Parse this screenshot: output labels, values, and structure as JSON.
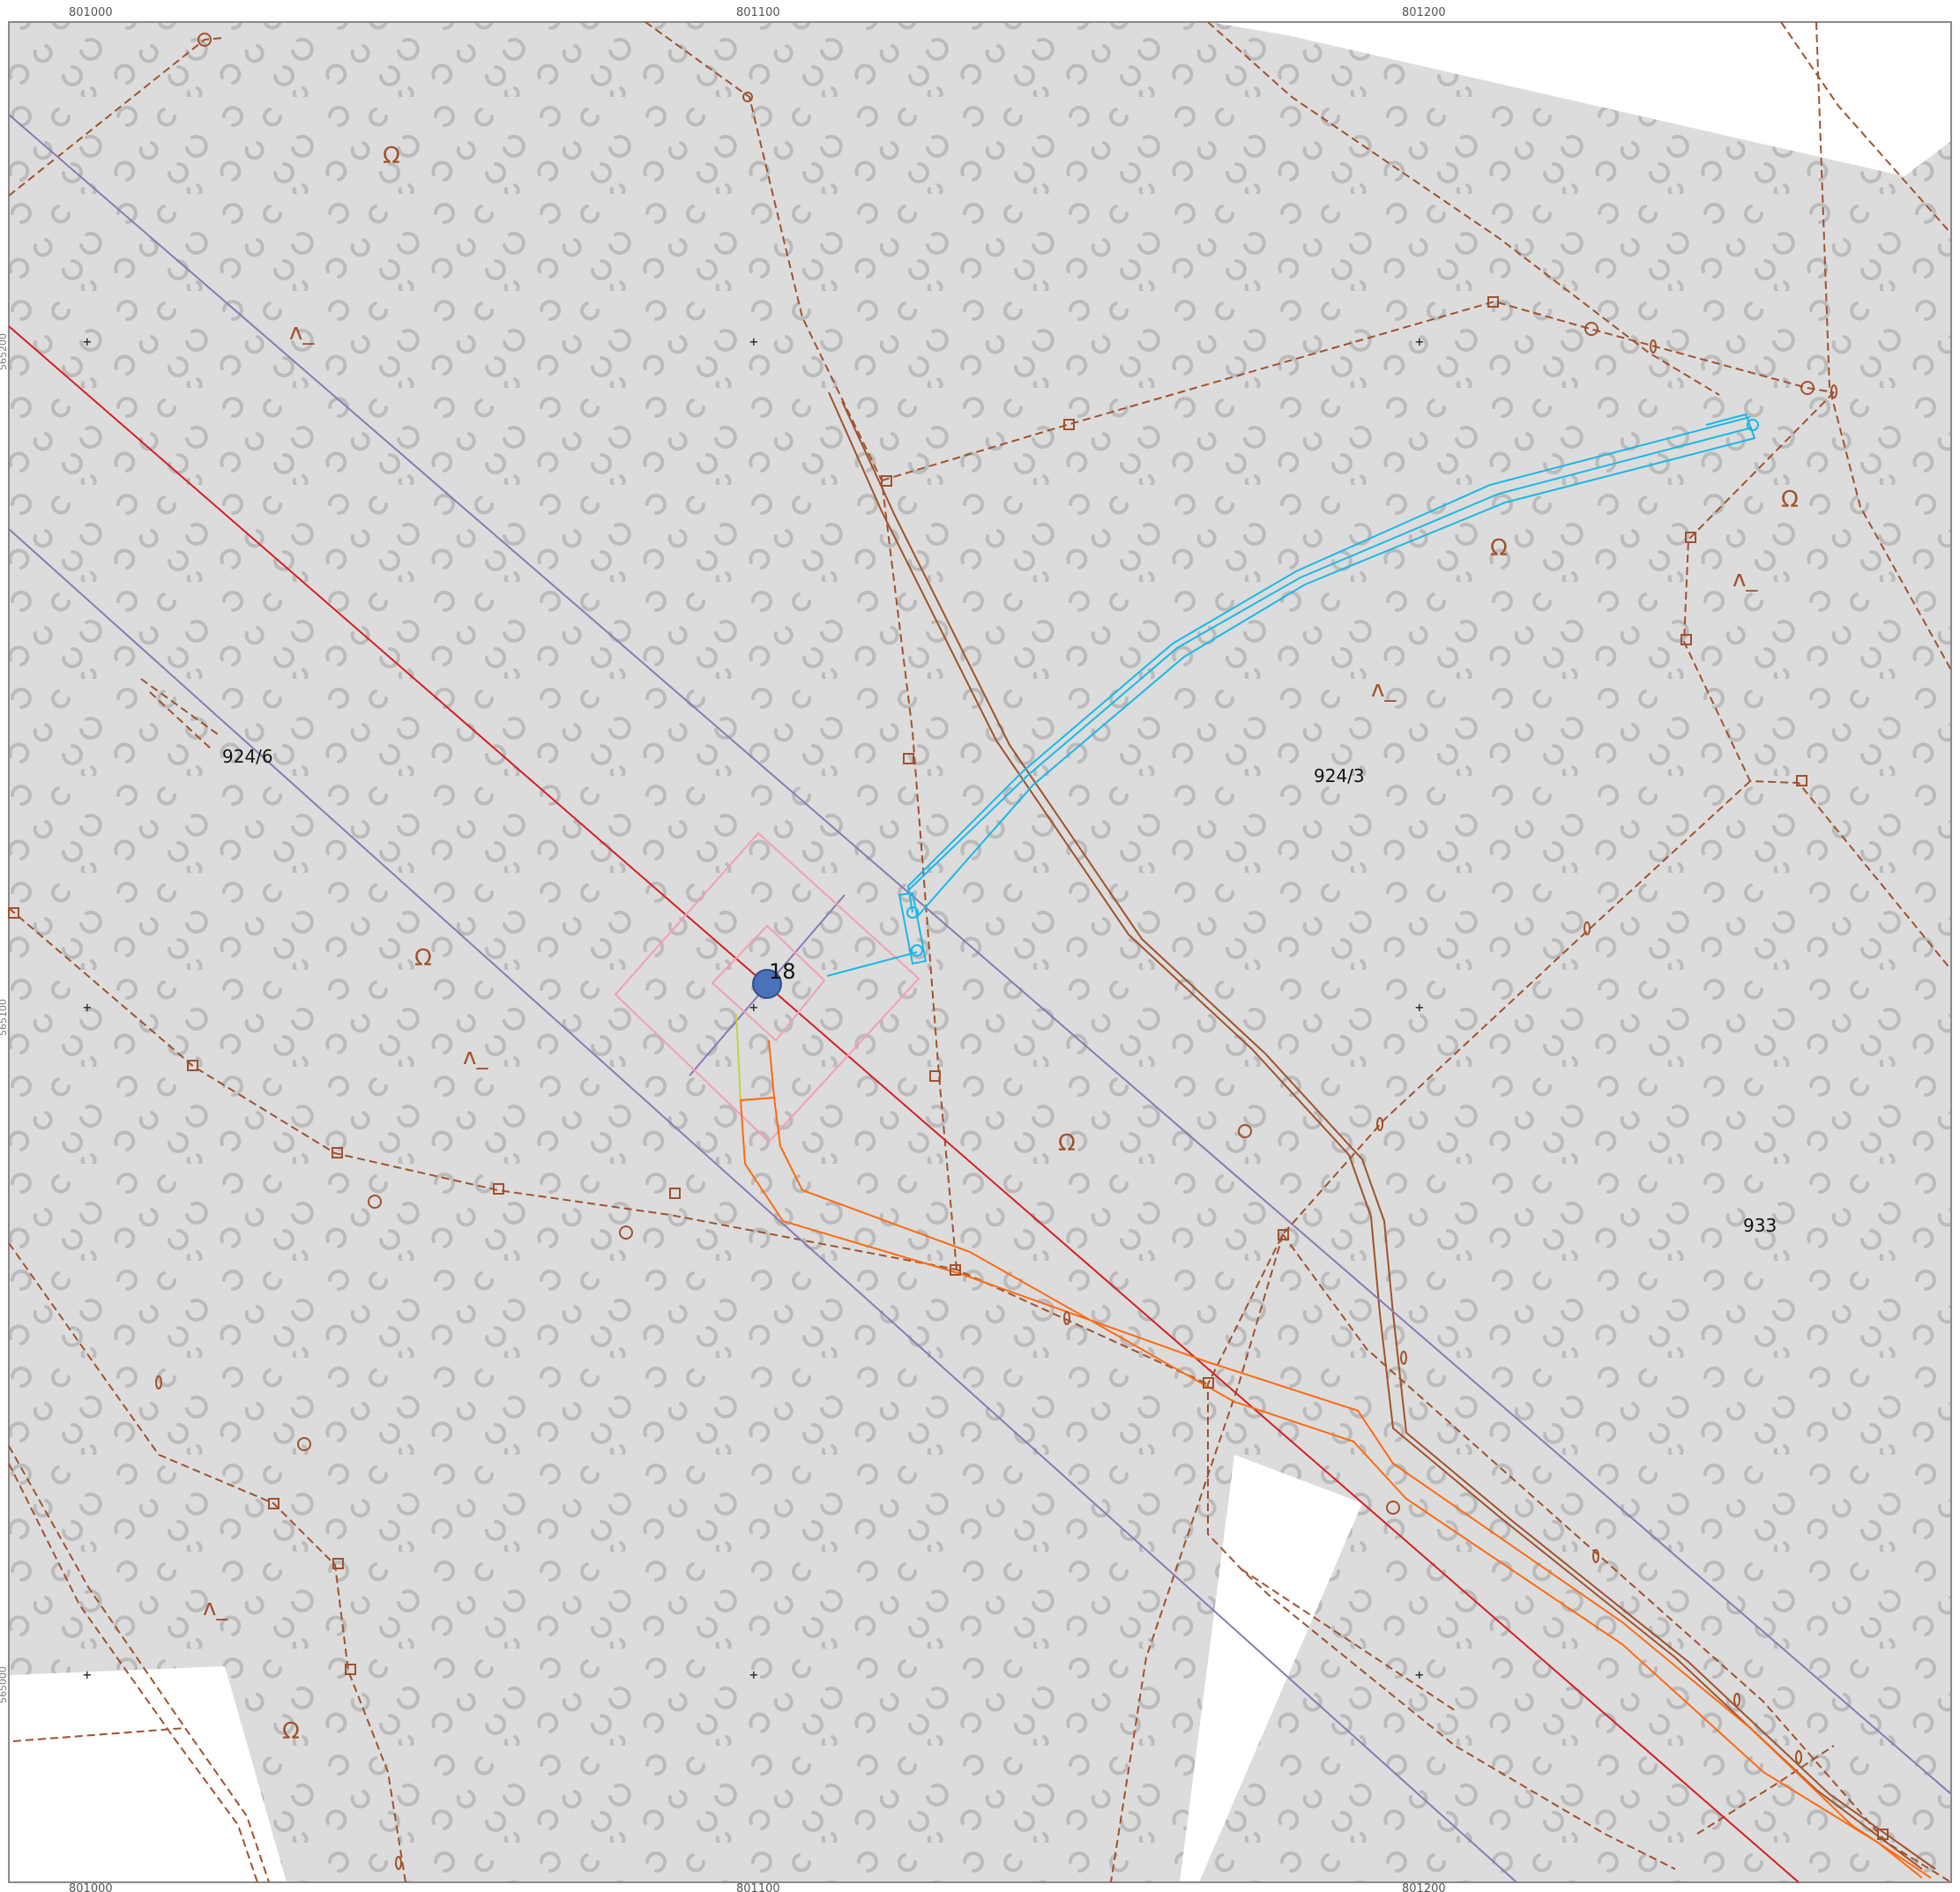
{
  "top_coords": [
    "801000",
    "801100",
    "801200"
  ],
  "bottom_coords": [
    "801000",
    "801100",
    "801200"
  ],
  "left_coords": [
    "565200",
    "565100",
    "565000"
  ],
  "parcels": [
    "924/6",
    "924/3",
    "933"
  ],
  "point": {
    "label": "18"
  },
  "symbols": {
    "vegetation": "Ω",
    "terrain": "ʌ_"
  },
  "colors": {
    "background": "#ffffff",
    "land": "#dcdcdc",
    "texture": "#a8a8a8",
    "boundary": "#a0522d",
    "red_line": "#d42020",
    "purple_line": "#8c78b4",
    "cyan_line": "#1ab8e8",
    "orange_line": "#ff6a10",
    "pink_line": "#f0a0b0",
    "yellow_line": "#c8d040",
    "point_fill": "#4a72b8"
  }
}
